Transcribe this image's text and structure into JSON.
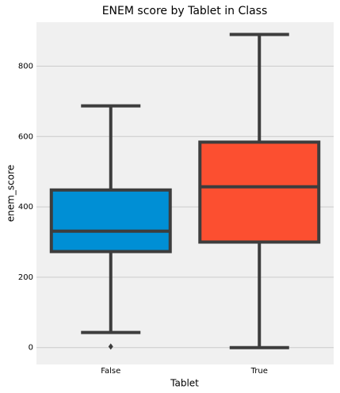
{
  "chart_data": {
    "type": "box",
    "title": "ENEM score by Tablet in Class",
    "xlabel": "Tablet",
    "ylabel": "enem_score",
    "categories": [
      "False",
      "True"
    ],
    "boxes": [
      {
        "min": 43,
        "q1": 273,
        "median": 331,
        "q3": 448,
        "max": 687,
        "outliers": [
          3
        ]
      },
      {
        "min": 0,
        "q1": 300,
        "median": 457,
        "q3": 584,
        "max": 890,
        "outliers": []
      }
    ],
    "colors": [
      "#008fd5",
      "#fc4f30"
    ],
    "ylim": [
      -48,
      925
    ],
    "yticks": [
      0,
      200,
      400,
      600,
      800
    ],
    "grid": true
  }
}
